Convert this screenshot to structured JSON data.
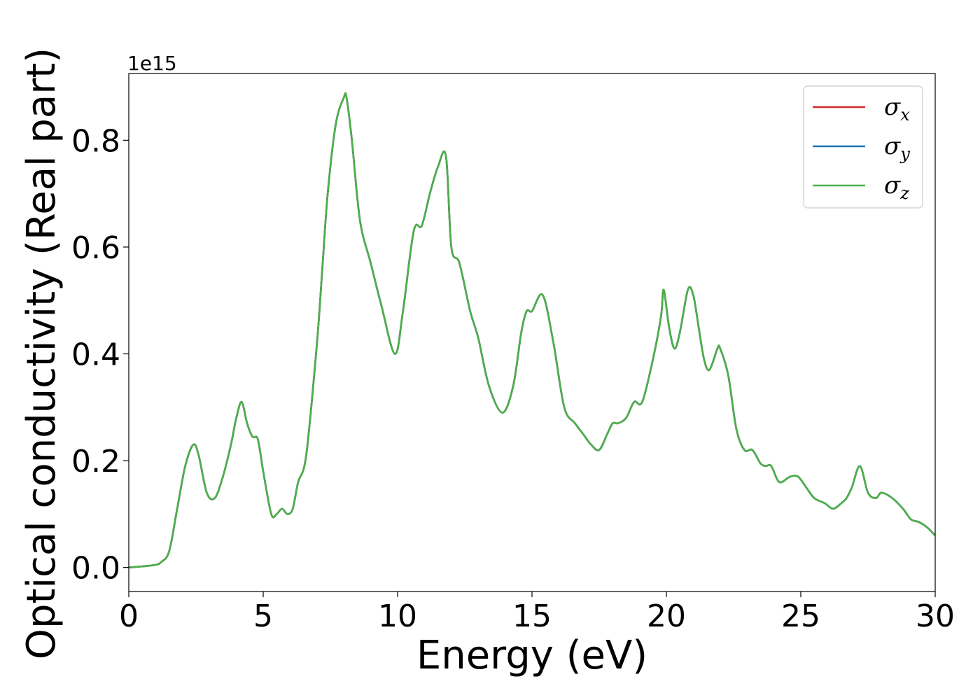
{
  "chart_data": {
    "type": "line",
    "xlabel": "Energy (eV)",
    "ylabel": "Optical conductivity (Real part)",
    "y_offset_label": "1e15",
    "xlim": [
      0,
      30
    ],
    "ylim": [
      -0.045,
      0.925
    ],
    "x_ticks": [
      0,
      5,
      10,
      15,
      20,
      25,
      30
    ],
    "x_tick_labels": [
      "0",
      "5",
      "10",
      "15",
      "20",
      "25",
      "30"
    ],
    "y_ticks": [
      0.0,
      0.2,
      0.4,
      0.6,
      0.8
    ],
    "y_tick_labels": [
      "0.0",
      "0.2",
      "0.4",
      "0.6",
      "0.8"
    ],
    "grid": false,
    "legend_position": "top-right",
    "legend": [
      {
        "symbol": "σ",
        "sub": "x",
        "color": "#d62728"
      },
      {
        "symbol": "σ",
        "sub": "y",
        "color": "#1f77b4"
      },
      {
        "symbol": "σ",
        "sub": "z",
        "color": "#4daf4a"
      }
    ],
    "x": [
      0,
      0.5,
      1,
      1.2,
      1.5,
      1.8,
      2.1,
      2.4,
      2.6,
      2.9,
      3.2,
      3.5,
      3.8,
      4.0,
      4.2,
      4.4,
      4.6,
      4.8,
      5.0,
      5.3,
      5.5,
      5.7,
      5.9,
      6.1,
      6.3,
      6.6,
      7.0,
      7.2,
      7.4,
      7.7,
      8.0,
      8.1,
      8.3,
      8.6,
      9.0,
      9.4,
      9.9,
      10.2,
      10.6,
      10.9,
      11.2,
      11.5,
      11.8,
      12.0,
      12.3,
      12.7,
      13.0,
      13.4,
      13.9,
      14.3,
      14.6,
      14.8,
      15.0,
      15.4,
      15.8,
      16.2,
      16.6,
      16.9,
      17.2,
      17.5,
      17.8,
      18.0,
      18.2,
      18.5,
      18.8,
      19.1,
      19.5,
      19.8,
      19.9,
      20.1,
      20.3,
      20.5,
      20.8,
      21.0,
      21.2,
      21.4,
      21.6,
      21.9,
      22.0,
      22.3,
      22.6,
      22.9,
      23.2,
      23.5,
      23.7,
      23.9,
      24.2,
      24.6,
      24.9,
      25.2,
      25.5,
      25.9,
      26.2,
      26.5,
      26.7,
      26.9,
      27.2,
      27.5,
      27.8,
      28.0,
      28.4,
      28.8,
      29.1,
      29.4,
      29.7,
      30.0
    ],
    "series": [
      {
        "color": "#d62728",
        "values": [
          0.0,
          0.002,
          0.005,
          0.01,
          0.03,
          0.11,
          0.19,
          0.23,
          0.21,
          0.14,
          0.13,
          0.17,
          0.23,
          0.28,
          0.31,
          0.27,
          0.245,
          0.24,
          0.18,
          0.1,
          0.1,
          0.11,
          0.1,
          0.11,
          0.16,
          0.21,
          0.42,
          0.56,
          0.7,
          0.83,
          0.88,
          0.88,
          0.8,
          0.65,
          0.57,
          0.49,
          0.4,
          0.48,
          0.63,
          0.64,
          0.7,
          0.75,
          0.77,
          0.6,
          0.57,
          0.48,
          0.43,
          0.34,
          0.29,
          0.34,
          0.44,
          0.48,
          0.48,
          0.51,
          0.42,
          0.3,
          0.27,
          0.25,
          0.23,
          0.22,
          0.25,
          0.27,
          0.27,
          0.28,
          0.31,
          0.31,
          0.39,
          0.47,
          0.52,
          0.45,
          0.41,
          0.44,
          0.52,
          0.51,
          0.45,
          0.39,
          0.37,
          0.41,
          0.41,
          0.36,
          0.26,
          0.22,
          0.22,
          0.195,
          0.19,
          0.19,
          0.16,
          0.17,
          0.17,
          0.15,
          0.13,
          0.12,
          0.11,
          0.12,
          0.13,
          0.15,
          0.19,
          0.14,
          0.13,
          0.14,
          0.13,
          0.11,
          0.09,
          0.085,
          0.075,
          0.06
        ]
      },
      {
        "color": "#1f77b4",
        "values": [
          0.0,
          0.002,
          0.005,
          0.01,
          0.03,
          0.11,
          0.19,
          0.23,
          0.21,
          0.14,
          0.13,
          0.17,
          0.23,
          0.28,
          0.31,
          0.27,
          0.245,
          0.24,
          0.18,
          0.1,
          0.1,
          0.11,
          0.1,
          0.11,
          0.16,
          0.21,
          0.42,
          0.56,
          0.7,
          0.83,
          0.88,
          0.88,
          0.8,
          0.65,
          0.57,
          0.49,
          0.4,
          0.48,
          0.63,
          0.64,
          0.7,
          0.75,
          0.77,
          0.6,
          0.57,
          0.48,
          0.43,
          0.34,
          0.29,
          0.34,
          0.44,
          0.48,
          0.48,
          0.51,
          0.42,
          0.3,
          0.27,
          0.25,
          0.23,
          0.22,
          0.25,
          0.27,
          0.27,
          0.28,
          0.31,
          0.31,
          0.39,
          0.47,
          0.52,
          0.45,
          0.41,
          0.44,
          0.52,
          0.51,
          0.45,
          0.39,
          0.37,
          0.41,
          0.41,
          0.36,
          0.26,
          0.22,
          0.22,
          0.195,
          0.19,
          0.19,
          0.16,
          0.17,
          0.17,
          0.15,
          0.13,
          0.12,
          0.11,
          0.12,
          0.13,
          0.15,
          0.19,
          0.14,
          0.13,
          0.14,
          0.13,
          0.11,
          0.09,
          0.085,
          0.075,
          0.06
        ]
      },
      {
        "color": "#4daf4a",
        "values": [
          0.0,
          0.002,
          0.005,
          0.01,
          0.03,
          0.11,
          0.19,
          0.23,
          0.21,
          0.14,
          0.13,
          0.17,
          0.23,
          0.28,
          0.31,
          0.27,
          0.245,
          0.24,
          0.18,
          0.1,
          0.1,
          0.11,
          0.1,
          0.11,
          0.16,
          0.21,
          0.42,
          0.56,
          0.7,
          0.83,
          0.88,
          0.88,
          0.8,
          0.65,
          0.57,
          0.49,
          0.4,
          0.48,
          0.63,
          0.64,
          0.7,
          0.75,
          0.77,
          0.6,
          0.57,
          0.48,
          0.43,
          0.34,
          0.29,
          0.34,
          0.44,
          0.48,
          0.48,
          0.51,
          0.42,
          0.3,
          0.27,
          0.25,
          0.23,
          0.22,
          0.25,
          0.27,
          0.27,
          0.28,
          0.31,
          0.31,
          0.39,
          0.47,
          0.52,
          0.45,
          0.41,
          0.44,
          0.52,
          0.51,
          0.45,
          0.39,
          0.37,
          0.41,
          0.41,
          0.36,
          0.26,
          0.22,
          0.22,
          0.195,
          0.19,
          0.19,
          0.16,
          0.17,
          0.17,
          0.15,
          0.13,
          0.12,
          0.11,
          0.12,
          0.13,
          0.15,
          0.19,
          0.14,
          0.13,
          0.14,
          0.13,
          0.11,
          0.09,
          0.085,
          0.075,
          0.06
        ]
      }
    ]
  }
}
